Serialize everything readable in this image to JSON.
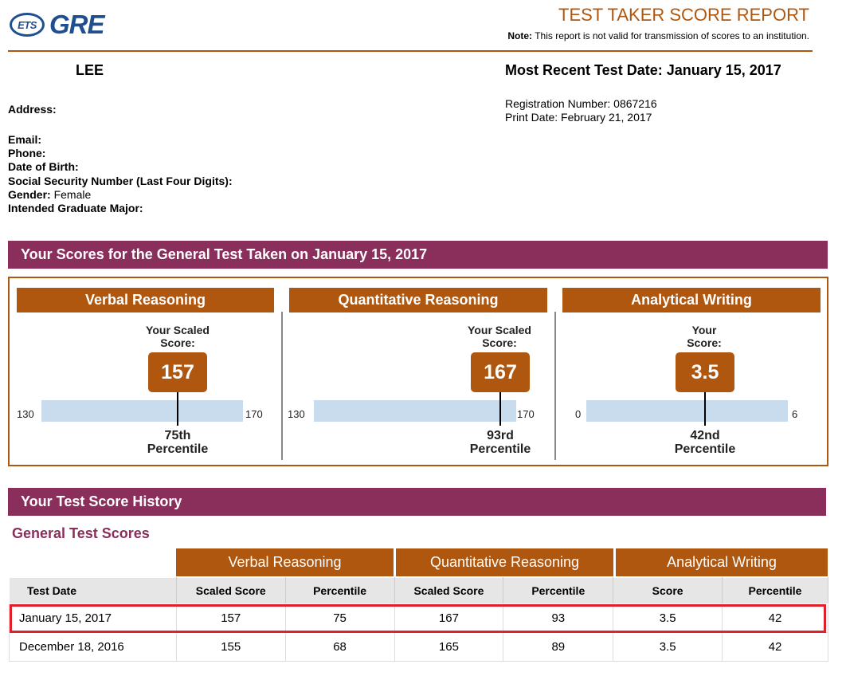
{
  "header": {
    "ets_logo": "ETS",
    "gre_logo": "GRE",
    "title": "TEST TAKER SCORE REPORT",
    "note_label": "Note:",
    "note_text": "This report is not valid for transmission of scores to an institution."
  },
  "candidate": {
    "name": "LEE",
    "recent_test_label": "Most Recent Test Date: January 15, 2017",
    "address_label": "Address:",
    "registration": "Registration Number: 0867216",
    "print_date": "Print Date: February 21, 2017",
    "fields": [
      {
        "label": "Email:",
        "value": ""
      },
      {
        "label": "Phone:",
        "value": ""
      },
      {
        "label": "Date of Birth:",
        "value": ""
      },
      {
        "label": "Social Security Number (Last Four Digits):",
        "value": ""
      },
      {
        "label": "Gender:",
        "value": " Female"
      },
      {
        "label": "Intended Graduate Major:",
        "value": ""
      }
    ]
  },
  "scores_section": {
    "title": "Your Scores for the General Test Taken on January 15, 2017",
    "sections": [
      {
        "name": "Verbal Reasoning",
        "caption1": "Your Scaled",
        "caption2": "Score:",
        "score": "157",
        "min": "130",
        "max": "170",
        "pct1": "75th",
        "pct2": "Percentile",
        "score_value": 157,
        "range_min": 130,
        "range_max": 170
      },
      {
        "name": "Quantitative Reasoning",
        "caption1": "Your Scaled",
        "caption2": "Score:",
        "score": "167",
        "min": "130",
        "max": "170",
        "pct1": "93rd",
        "pct2": "Percentile",
        "score_value": 167,
        "range_min": 130,
        "range_max": 170
      },
      {
        "name": "Analytical Writing",
        "caption1": "Your",
        "caption2": "Score:",
        "score": "3.5",
        "min": "0",
        "max": "6",
        "pct1": "42nd",
        "pct2": "Percentile",
        "score_value": 3.5,
        "range_min": 0,
        "range_max": 6
      }
    ]
  },
  "history": {
    "title": "Your Test Score History",
    "subtitle": "General Test Scores",
    "groups": [
      "Verbal Reasoning",
      "Quantitative Reasoning",
      "Analytical Writing"
    ],
    "columns": [
      "Test Date",
      "Scaled Score",
      "Percentile",
      "Scaled Score",
      "Percentile",
      "Score",
      "Percentile"
    ],
    "rows": [
      [
        "January 15, 2017",
        "157",
        "75",
        "167",
        "93",
        "3.5",
        "42"
      ],
      [
        "December 18, 2016",
        "155",
        "68",
        "165",
        "89",
        "3.5",
        "42"
      ]
    ]
  },
  "colors": {
    "accent_orange": "#b0570f",
    "section_purple": "#8a2f5c",
    "logo_blue": "#1f4f8f",
    "range_blue": "#c9dced",
    "highlight_red": "#e0202a"
  }
}
